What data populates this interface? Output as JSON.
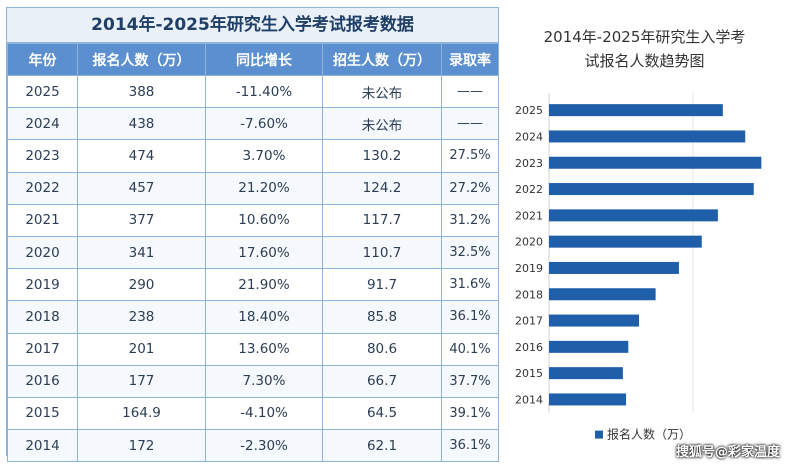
{
  "table": {
    "title": "2014年-2025年研究生入学考试报考数据",
    "headers": [
      "年份",
      "报名人数（万）",
      "同比增长",
      "招生人数（万）",
      "录取率"
    ],
    "rows": [
      [
        "2025",
        "388",
        "-11.40%",
        "未公布",
        "——"
      ],
      [
        "2024",
        "438",
        "-7.60%",
        "未公布",
        "——"
      ],
      [
        "2023",
        "474",
        "3.70%",
        "130.2",
        "27.5%"
      ],
      [
        "2022",
        "457",
        "21.20%",
        "124.2",
        "27.2%"
      ],
      [
        "2021",
        "377",
        "10.60%",
        "117.7",
        "31.2%"
      ],
      [
        "2020",
        "341",
        "17.60%",
        "110.7",
        "32.5%"
      ],
      [
        "2019",
        "290",
        "21.90%",
        "91.7",
        "31.6%"
      ],
      [
        "2018",
        "238",
        "18.40%",
        "85.8",
        "36.1%"
      ],
      [
        "2017",
        "201",
        "13.60%",
        "80.6",
        "40.1%"
      ],
      [
        "2016",
        "177",
        "7.30%",
        "66.7",
        "37.7%"
      ],
      [
        "2015",
        "164.9",
        "-4.10%",
        "64.5",
        "39.1%"
      ],
      [
        "2014",
        "172",
        "-2.30%",
        "62.1",
        "36.1%"
      ]
    ]
  },
  "chart_data": {
    "type": "bar",
    "orientation": "horizontal",
    "title_line1": "2014年-2025年研究生入学考",
    "title_line2": "试报名人数趋势图",
    "categories": [
      "2025",
      "2024",
      "2023",
      "2022",
      "2021",
      "2020",
      "2019",
      "2018",
      "2017",
      "2016",
      "2015",
      "2014"
    ],
    "series": [
      {
        "name": "报名人数（万）",
        "values": [
          388,
          438,
          474,
          457,
          377,
          341,
          290,
          238,
          201,
          177,
          164.9,
          172
        ]
      }
    ],
    "xlim": [
      0,
      500
    ],
    "legend": "bottom",
    "bar_color": "#1f5ea8"
  },
  "watermark": "搜狐号@彩家温度"
}
